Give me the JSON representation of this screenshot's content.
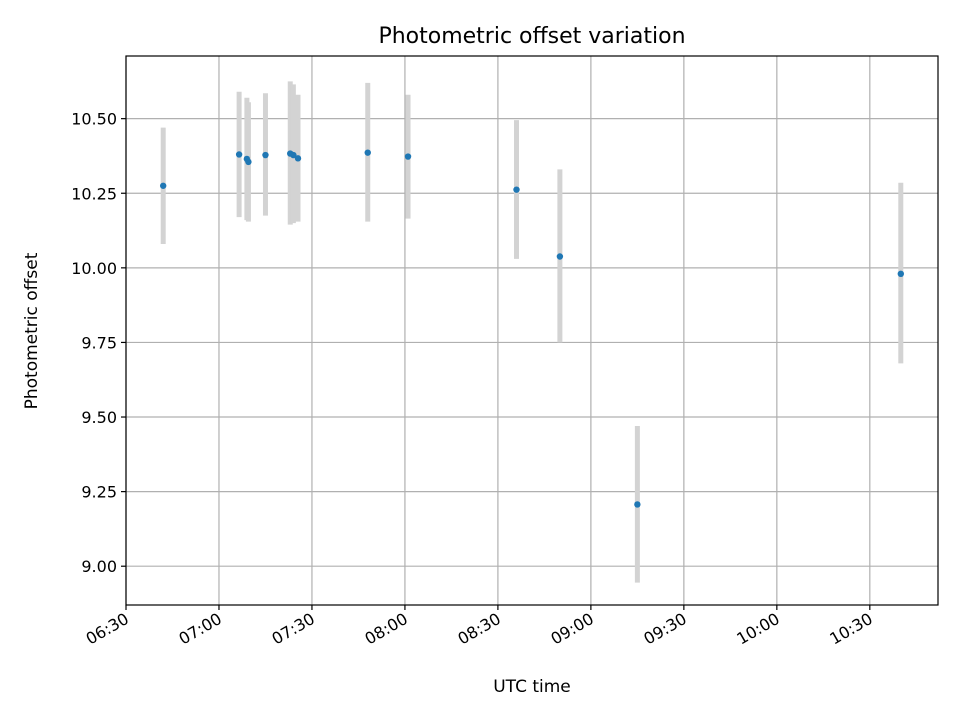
{
  "chart_data": {
    "type": "scatter",
    "title": "Photometric offset variation",
    "xlabel": "UTC time",
    "ylabel": "Photometric offset",
    "grid": true,
    "legend": "none",
    "x_tick_labels": [
      "06:30",
      "07:00",
      "07:30",
      "08:00",
      "08:30",
      "09:00",
      "09:30",
      "10:00",
      "10:30"
    ],
    "x_ticks": [
      "06:30",
      "07:00",
      "07:30",
      "08:00",
      "08:30",
      "09:00",
      "09:30",
      "10:00",
      "10:30"
    ],
    "xlim": [
      "06:30",
      "10:52"
    ],
    "y_ticks": [
      9.0,
      9.25,
      9.5,
      9.75,
      10.0,
      10.25,
      10.5
    ],
    "y_tick_labels": [
      "9.00",
      "9.25",
      "9.50",
      "9.75",
      "10.00",
      "10.25",
      "10.50"
    ],
    "ylim": [
      8.87,
      10.71
    ],
    "colors": {
      "points": "#1f77b4",
      "errorbars": "#d3d3d3",
      "grid": "#b0b0b0"
    },
    "points": [
      {
        "time": "06:42",
        "y": 10.275,
        "ylow": 10.08,
        "yhigh": 10.47
      },
      {
        "time": "07:06:30",
        "y": 10.38,
        "ylow": 10.17,
        "yhigh": 10.59
      },
      {
        "time": "07:09",
        "y": 10.365,
        "ylow": 10.16,
        "yhigh": 10.57
      },
      {
        "time": "07:09:30",
        "y": 10.355,
        "ylow": 10.155,
        "yhigh": 10.555
      },
      {
        "time": "07:15",
        "y": 10.378,
        "ylow": 10.175,
        "yhigh": 10.585
      },
      {
        "time": "07:23",
        "y": 10.383,
        "ylow": 10.145,
        "yhigh": 10.625
      },
      {
        "time": "07:24",
        "y": 10.378,
        "ylow": 10.15,
        "yhigh": 10.615
      },
      {
        "time": "07:25:30",
        "y": 10.367,
        "ylow": 10.155,
        "yhigh": 10.58
      },
      {
        "time": "07:48",
        "y": 10.386,
        "ylow": 10.155,
        "yhigh": 10.62
      },
      {
        "time": "08:01",
        "y": 10.373,
        "ylow": 10.165,
        "yhigh": 10.58
      },
      {
        "time": "08:36",
        "y": 10.262,
        "ylow": 10.03,
        "yhigh": 10.495
      },
      {
        "time": "08:50",
        "y": 10.038,
        "ylow": 9.75,
        "yhigh": 10.33
      },
      {
        "time": "09:15",
        "y": 9.207,
        "ylow": 8.945,
        "yhigh": 9.47
      },
      {
        "time": "10:40",
        "y": 9.98,
        "ylow": 9.68,
        "yhigh": 10.285
      }
    ]
  }
}
